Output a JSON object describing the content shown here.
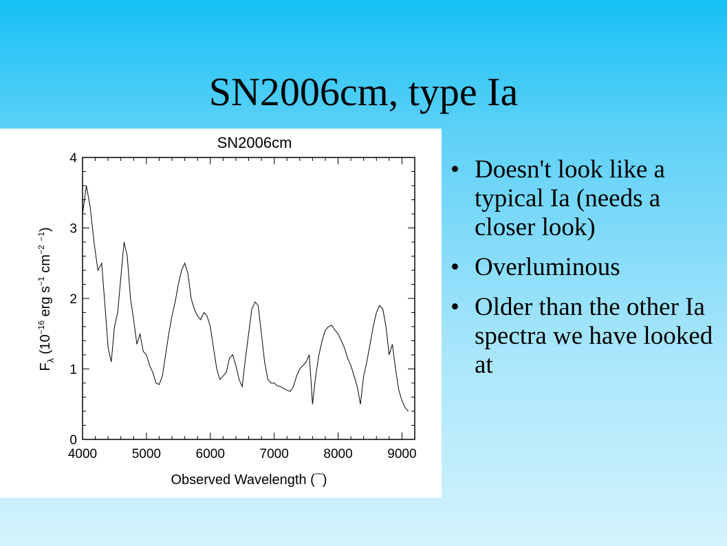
{
  "slide": {
    "title": "SN2006cm, type Ia",
    "bullets": [
      "Doesn't look like a typical Ia (needs a closer look)",
      "Overluminous",
      "Older than the other Ia spectra we have looked at"
    ],
    "bullet_glyph": "•"
  },
  "chart_data": {
    "type": "line",
    "title": "SN2006cm",
    "xlabel": "Observed Wavelength (¯)",
    "ylabel_parts": {
      "main": "F",
      "sub": "λ",
      "pre": " (10",
      "exp1": "−16",
      "mid": " erg s",
      "exp2": "−1",
      "mid2": " cm",
      "exp3": "−2",
      "mid3": " ",
      "exp4": "−1",
      "post": ")"
    },
    "xlim": [
      4000,
      9200
    ],
    "ylim": [
      0,
      4
    ],
    "xticks": [
      4000,
      5000,
      6000,
      7000,
      8000,
      9000
    ],
    "yticks": [
      0,
      1,
      2,
      3,
      4
    ],
    "line_color": "#000000",
    "series": [
      {
        "x": [
          4000,
          4060,
          4120,
          4180,
          4240,
          4300,
          4360,
          4400,
          4450,
          4500,
          4550,
          4600,
          4650,
          4700,
          4750,
          4800,
          4850,
          4900,
          4950,
          5000,
          5050,
          5100,
          5150,
          5200,
          5250,
          5300,
          5350,
          5400,
          5450,
          5500,
          5550,
          5600,
          5650,
          5700,
          5750,
          5800,
          5850,
          5900,
          5950,
          6000,
          6050,
          6100,
          6150,
          6200,
          6250,
          6300,
          6350,
          6400,
          6450,
          6500,
          6550,
          6600,
          6650,
          6700,
          6750,
          6800,
          6850,
          6900,
          6950,
          7000,
          7050,
          7100,
          7150,
          7200,
          7250,
          7300,
          7350,
          7400,
          7450,
          7500,
          7550,
          7600,
          7650,
          7700,
          7750,
          7800,
          7850,
          7900,
          7950,
          8000,
          8050,
          8100,
          8150,
          8200,
          8250,
          8300,
          8350,
          8400,
          8450,
          8500,
          8550,
          8600,
          8650,
          8700,
          8750,
          8800,
          8850,
          8900,
          8950,
          9000,
          9050,
          9100
        ],
        "y": [
          3.2,
          3.6,
          3.3,
          2.8,
          2.4,
          2.5,
          1.8,
          1.3,
          1.1,
          1.6,
          1.8,
          2.3,
          2.8,
          2.6,
          2.0,
          1.7,
          1.35,
          1.5,
          1.25,
          1.2,
          1.05,
          0.95,
          0.8,
          0.78,
          0.9,
          1.2,
          1.5,
          1.75,
          1.95,
          2.2,
          2.4,
          2.5,
          2.35,
          2.0,
          1.85,
          1.75,
          1.7,
          1.8,
          1.75,
          1.6,
          1.3,
          1.0,
          0.85,
          0.9,
          0.95,
          1.15,
          1.2,
          1.05,
          0.85,
          0.75,
          1.15,
          1.5,
          1.85,
          1.95,
          1.9,
          1.5,
          1.1,
          0.85,
          0.8,
          0.8,
          0.76,
          0.75,
          0.72,
          0.7,
          0.68,
          0.75,
          0.9,
          1.0,
          1.05,
          1.1,
          1.2,
          0.5,
          0.9,
          1.2,
          1.4,
          1.55,
          1.6,
          1.62,
          1.55,
          1.5,
          1.4,
          1.3,
          1.15,
          1.05,
          0.9,
          0.75,
          0.5,
          0.9,
          1.1,
          1.35,
          1.6,
          1.8,
          1.9,
          1.85,
          1.6,
          1.2,
          1.35,
          1.0,
          0.7,
          0.55,
          0.45,
          0.4
        ]
      }
    ]
  }
}
